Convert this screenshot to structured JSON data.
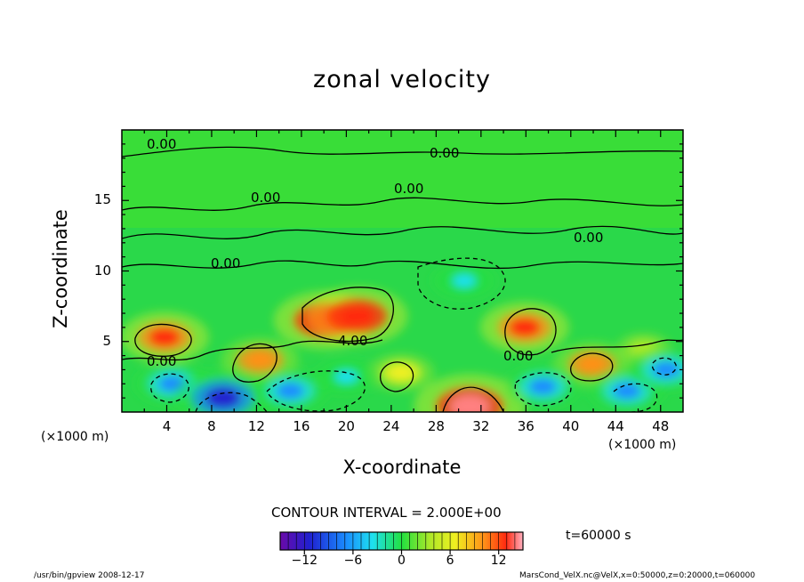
{
  "chart_data": {
    "type": "heatmap",
    "title": "zonal velocity",
    "xlabel": "X-coordinate",
    "ylabel": "Z-coordinate",
    "x_unit_label": "(×1000 m)",
    "xlim": [
      0,
      50
    ],
    "ylim": [
      0,
      20
    ],
    "x_ticks": [
      "4",
      "8",
      "12",
      "16",
      "20",
      "24",
      "28",
      "32",
      "36",
      "40",
      "44",
      "48"
    ],
    "y_ticks": [
      "5",
      "10",
      "15"
    ],
    "contour_labels": [
      "0.00",
      "0.00",
      "0.00",
      "0.00",
      "0.00",
      "0.00",
      "0.00",
      "4.00",
      "0.00"
    ],
    "contour_interval_text": "CONTOUR INTERVAL = 2.000E+00",
    "colorbar": {
      "min": -15,
      "max": 15,
      "ticks": [
        "−12",
        "−6",
        "0",
        "6",
        "12"
      ]
    },
    "features": [
      {
        "x": 3.8,
        "z": 5.3,
        "value": 10
      },
      {
        "x": 12.3,
        "z": 3.7,
        "value": 8
      },
      {
        "x": 18,
        "z": 6.5,
        "value": 12
      },
      {
        "x": 21,
        "z": 6.8,
        "value": 12
      },
      {
        "x": 24.9,
        "z": 2.8,
        "value": 6
      },
      {
        "x": 31,
        "z": 0.4,
        "value": 14
      },
      {
        "x": 35.9,
        "z": 6.0,
        "value": 10
      },
      {
        "x": 41.9,
        "z": 3.4,
        "value": 8
      },
      {
        "x": 46.5,
        "z": 4.5,
        "value": 4
      },
      {
        "x": 4.5,
        "z": 2.0,
        "value": -8
      },
      {
        "x": 9,
        "z": 1.0,
        "value": -12
      },
      {
        "x": 15,
        "z": 1.5,
        "value": -8
      },
      {
        "x": 20,
        "z": 2.5,
        "value": -6
      },
      {
        "x": 30.5,
        "z": 9.3,
        "value": -6
      },
      {
        "x": 37.5,
        "z": 1.8,
        "value": -8
      },
      {
        "x": 45,
        "z": 1.5,
        "value": -8
      },
      {
        "x": 48.5,
        "z": 3.0,
        "value": -8
      }
    ]
  },
  "time_label": "t=60000 s",
  "footer": {
    "left": "/usr/bin/gpview  2008-12-17",
    "right": "MarsCond_VelX.nc@VelX,x=0:50000,z=0:20000,t=060000"
  }
}
